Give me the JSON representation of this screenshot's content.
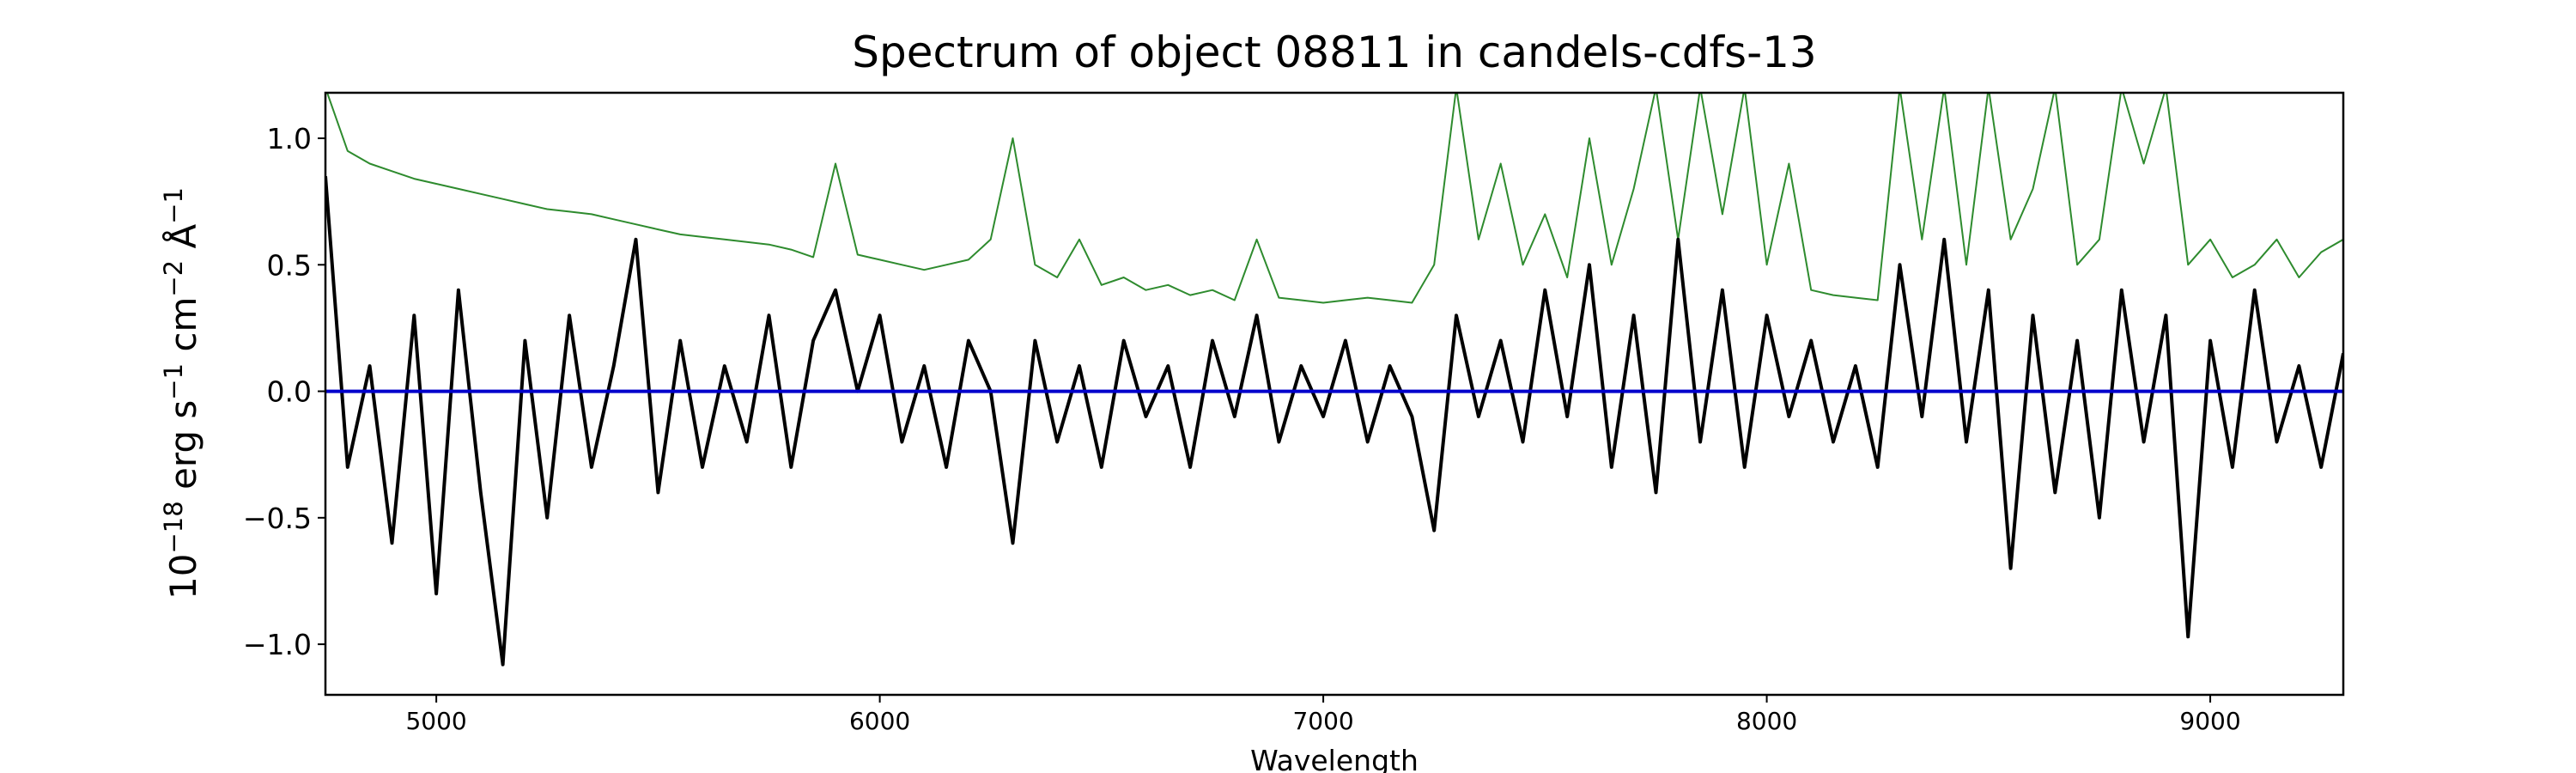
{
  "chart_data": {
    "type": "line",
    "title": "Spectrum of object 08811 in candels-cdfs-13",
    "xlabel": "Wavelength",
    "ylabel_parts": [
      "10",
      "−18",
      " erg s",
      "−1",
      " cm",
      "−2",
      " Å",
      "−1"
    ],
    "xlim": [
      4750,
      9300
    ],
    "ylim": [
      -1.2,
      1.18
    ],
    "xticks": [
      5000,
      6000,
      7000,
      8000,
      9000
    ],
    "yticks": [
      {
        "value": -1.0,
        "label": "−1.0"
      },
      {
        "value": -0.5,
        "label": "−0.5"
      },
      {
        "value": 0.0,
        "label": "0.0"
      },
      {
        "value": 0.5,
        "label": "0.5"
      },
      {
        "value": 1.0,
        "label": "1.0"
      }
    ],
    "x": [
      4750,
      4800,
      4850,
      4900,
      4950,
      5000,
      5050,
      5100,
      5150,
      5200,
      5250,
      5300,
      5350,
      5400,
      5450,
      5500,
      5550,
      5600,
      5650,
      5700,
      5750,
      5800,
      5850,
      5900,
      5950,
      6000,
      6050,
      6100,
      6150,
      6200,
      6250,
      6300,
      6350,
      6400,
      6450,
      6500,
      6550,
      6600,
      6650,
      6700,
      6750,
      6800,
      6850,
      6900,
      6950,
      7000,
      7050,
      7100,
      7150,
      7200,
      7250,
      7300,
      7350,
      7400,
      7450,
      7500,
      7550,
      7600,
      7650,
      7700,
      7750,
      7800,
      7850,
      7900,
      7950,
      8000,
      8050,
      8100,
      8150,
      8200,
      8250,
      8300,
      8350,
      8400,
      8450,
      8500,
      8550,
      8600,
      8650,
      8700,
      8750,
      8800,
      8850,
      8900,
      8950,
      9000,
      9050,
      9100,
      9150,
      9200,
      9250,
      9300
    ],
    "series": [
      {
        "color": "#2e8b2e",
        "width": 2,
        "values": [
          1.2,
          0.95,
          0.9,
          0.87,
          0.84,
          0.82,
          0.8,
          0.78,
          0.76,
          0.74,
          0.72,
          0.71,
          0.7,
          0.68,
          0.66,
          0.64,
          0.62,
          0.61,
          0.6,
          0.59,
          0.58,
          0.56,
          0.53,
          0.9,
          0.54,
          0.52,
          0.5,
          0.48,
          0.5,
          0.52,
          0.6,
          1.0,
          0.5,
          0.45,
          0.6,
          0.42,
          0.45,
          0.4,
          0.42,
          0.38,
          0.4,
          0.36,
          0.6,
          0.37,
          0.36,
          0.35,
          0.36,
          0.37,
          0.36,
          0.35,
          0.5,
          1.2,
          0.6,
          0.9,
          0.5,
          0.7,
          0.45,
          1.0,
          0.5,
          0.8,
          1.2,
          0.6,
          1.2,
          0.7,
          1.2,
          0.5,
          0.9,
          0.4,
          0.38,
          0.37,
          0.36,
          1.2,
          0.6,
          1.2,
          0.5,
          1.2,
          0.6,
          0.8,
          1.2,
          0.5,
          0.6,
          1.2,
          0.9,
          1.2,
          0.5,
          0.6,
          0.45,
          0.5,
          0.6,
          0.45,
          0.55,
          0.6
        ]
      },
      {
        "color": "#000000",
        "width": 4,
        "values": [
          0.85,
          -0.3,
          0.1,
          -0.6,
          0.3,
          -0.8,
          0.4,
          -0.4,
          -1.08,
          0.2,
          -0.5,
          0.3,
          -0.3,
          0.1,
          0.6,
          -0.4,
          0.2,
          -0.3,
          0.1,
          -0.2,
          0.3,
          -0.3,
          0.2,
          0.4,
          0.0,
          0.3,
          -0.2,
          0.1,
          -0.3,
          0.2,
          0.0,
          -0.6,
          0.2,
          -0.2,
          0.1,
          -0.3,
          0.2,
          -0.1,
          0.1,
          -0.3,
          0.2,
          -0.1,
          0.3,
          -0.2,
          0.1,
          -0.1,
          0.2,
          -0.2,
          0.1,
          -0.1,
          -0.55,
          0.3,
          -0.1,
          0.2,
          -0.2,
          0.4,
          -0.1,
          0.5,
          -0.3,
          0.3,
          -0.4,
          0.6,
          -0.2,
          0.4,
          -0.3,
          0.3,
          -0.1,
          0.2,
          -0.2,
          0.1,
          -0.3,
          0.5,
          -0.1,
          0.6,
          -0.2,
          0.4,
          -0.7,
          0.3,
          -0.4,
          0.2,
          -0.5,
          0.4,
          -0.2,
          0.3,
          -0.97,
          0.2,
          -0.3,
          0.4,
          -0.2,
          0.1,
          -0.3,
          0.15
        ]
      },
      {
        "color": "#0000cc",
        "width": 4,
        "x": [
          4750,
          9300
        ],
        "values": [
          0,
          0
        ]
      }
    ]
  }
}
